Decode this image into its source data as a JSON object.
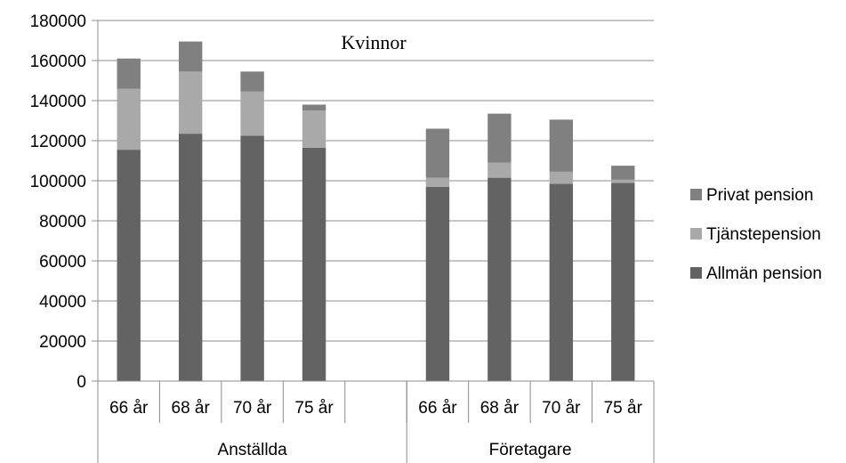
{
  "chart_data": {
    "type": "bar",
    "stacked": true,
    "title": "Kvinnor",
    "xlabel": "",
    "ylabel": "",
    "ylim": [
      0,
      180000
    ],
    "yticks": [
      0,
      20000,
      40000,
      60000,
      80000,
      100000,
      120000,
      140000,
      160000,
      180000
    ],
    "grid": true,
    "legend_position": "right",
    "groups": [
      {
        "label": "Anställda",
        "categories": [
          "66 år",
          "68 år",
          "70 år",
          "75 år"
        ]
      },
      {
        "label": "Företagare",
        "categories": [
          "66 år",
          "68 år",
          "70 år",
          "75 år"
        ]
      }
    ],
    "series": [
      {
        "name": "Allmän pension",
        "color": "#636363",
        "values": [
          115500,
          123500,
          122500,
          116500,
          97000,
          101500,
          98500,
          99000
        ]
      },
      {
        "name": "Tjänstepension",
        "color": "#a9a9a9",
        "values": [
          30500,
          31000,
          22000,
          18500,
          4500,
          7500,
          6000,
          1500
        ]
      },
      {
        "name": "Privat pension",
        "color": "#808080",
        "values": [
          15000,
          15000,
          10000,
          3000,
          24500,
          24500,
          26000,
          7000
        ]
      }
    ]
  }
}
